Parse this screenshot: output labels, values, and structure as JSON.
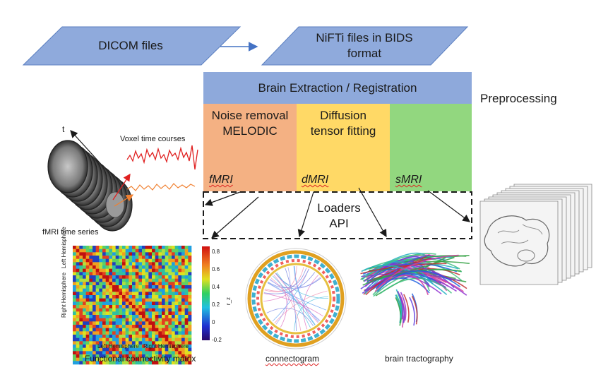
{
  "inputs": {
    "dicom_label": "DICOM files",
    "nifti_line1": "NiFTi files in BIDS",
    "nifti_line2": "format"
  },
  "pipeline": {
    "header": "Brain Extraction / Registration",
    "side_label": "Preprocessing",
    "steps": [
      {
        "line1": "Noise removal",
        "line2": "MELODIC",
        "modality": "fMRI"
      },
      {
        "line1": "Diffusion",
        "line2": "tensor fitting",
        "modality": "dMRI"
      },
      {
        "line1": "",
        "line2": "",
        "modality": "sMRI"
      }
    ]
  },
  "loaders": {
    "line1": "Loaders",
    "line2": "API"
  },
  "fmri_panel": {
    "time_axis": "t",
    "voxel_label": "Voxel time courses",
    "series_label": "fMRI time series"
  },
  "matrix_panel": {
    "caption": "Functional connectivity matrix",
    "left_hemi_x": "Left Hemisphere",
    "right_hemi_x": "Right Hemisphere",
    "left_hemi_y": "Left Hemisphere",
    "right_hemi_y": "Right Hemisphere",
    "colorbar_ticks": [
      "0.8",
      "0.6",
      "0.4",
      "0.2",
      "0",
      "-0.2"
    ],
    "colorbar_label": "r_z"
  },
  "connectogram_caption": "connectogram",
  "tractography_caption": "brain tractography",
  "colors": {
    "parallelogram": "#8faadc",
    "header_band": "#8ea9db",
    "fmri_band": "#f4b183",
    "dmri_band": "#ffd966",
    "smri_band": "#92d77f",
    "arrow": "#4472c4"
  }
}
